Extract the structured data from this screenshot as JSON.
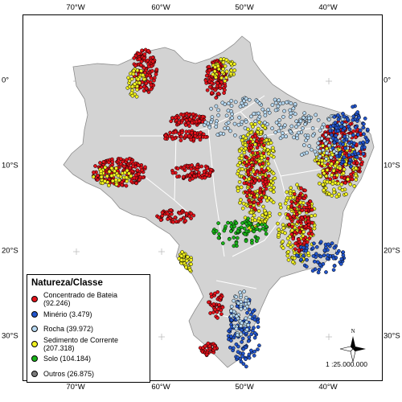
{
  "map": {
    "lon_ticks": [
      "70°W",
      "60°W",
      "50°W",
      "40°W"
    ],
    "lat_ticks": [
      "0°",
      "10°S",
      "20°S",
      "30°S"
    ],
    "north_label": "N",
    "scale": "1 :25.000.000"
  },
  "legend": {
    "title": "Natureza/Classe",
    "items": [
      {
        "label": "Concentrado de Bateia (92.246)",
        "color": "#e3121a",
        "name": "concentrado"
      },
      {
        "label": "Minério (3.479)",
        "color": "#2255cc",
        "name": "minerio"
      },
      {
        "label": "Rocha (39.972)",
        "color": "#b7d9f2",
        "name": "rocha"
      },
      {
        "label": "Sedimento de Corrente (207.318)",
        "color": "#f0f020",
        "name": "sedimento"
      },
      {
        "label": "Solo (104.184)",
        "color": "#19b319",
        "name": "solo"
      },
      {
        "label": "Outros (26.875)",
        "color": "#7a7a7a",
        "name": "outros"
      }
    ]
  },
  "colors": {
    "land": "#d3d3d3",
    "state_border": "#ffffff"
  }
}
